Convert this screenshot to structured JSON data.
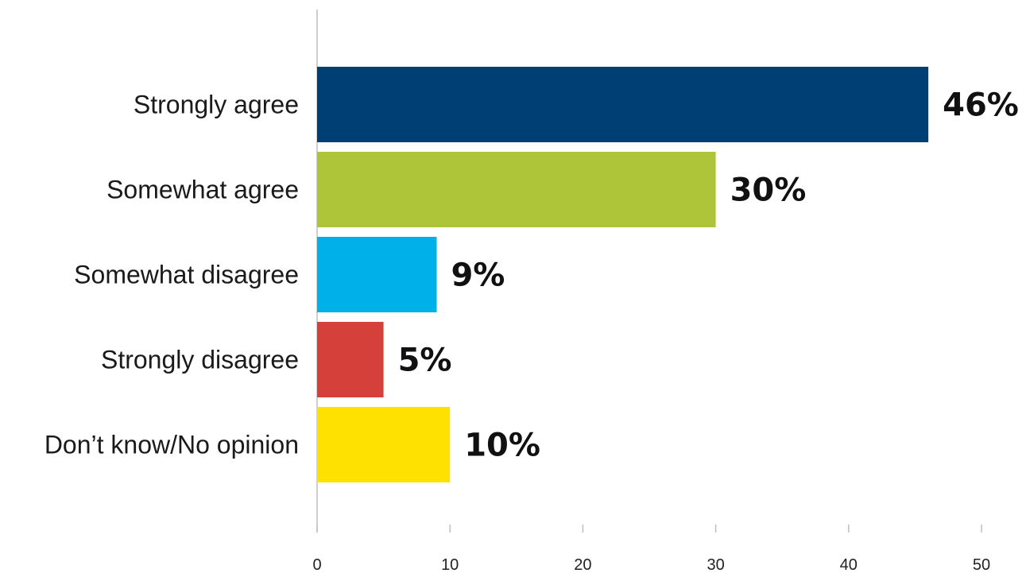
{
  "chart_data": {
    "type": "bar",
    "orientation": "horizontal",
    "categories": [
      "Strongly agree",
      "Somewhat agree",
      "Somewhat disagree",
      "Strongly disagree",
      "Don’t know/No opinion"
    ],
    "values": [
      46,
      30,
      9,
      5,
      10
    ],
    "value_labels": [
      "46%",
      "30%",
      "9%",
      "5%",
      "10%"
    ],
    "colors": [
      "#003f73",
      "#aec539",
      "#00b0e8",
      "#d5413a",
      "#ffe100"
    ],
    "title": "",
    "xlabel": "",
    "ylabel": "",
    "xlim": [
      0,
      50
    ],
    "x_ticks": [
      0,
      10,
      20,
      30,
      40,
      50
    ],
    "x_tick_labels": [
      "0",
      "10",
      "20",
      "30",
      "40",
      "50"
    ],
    "grid": false,
    "legend": "none"
  }
}
